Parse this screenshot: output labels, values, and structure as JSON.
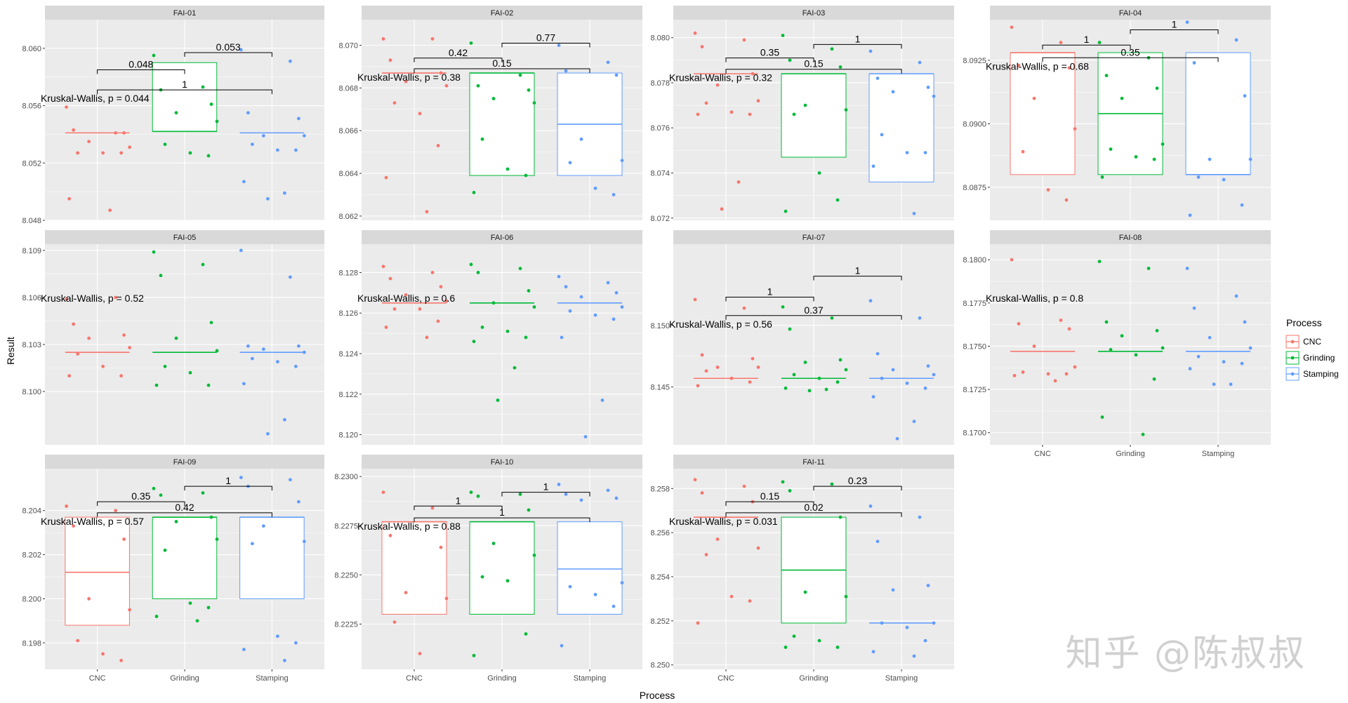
{
  "colors": {
    "CNC": "#F8766D",
    "Grinding": "#00BA38",
    "Stamping": "#619CFF",
    "panel_bg": "#EBEBEB",
    "strip_bg": "#D9D9D9",
    "grid": "#FFFFFF"
  },
  "watermark": "知乎 @陈叔叔",
  "chart_data": {
    "type": "boxplot-facets",
    "xlabel": "Process",
    "ylabel": "Result",
    "categories": [
      "CNC",
      "Grinding",
      "Stamping"
    ],
    "legend": {
      "title": "Process",
      "entries": [
        "CNC",
        "Grinding",
        "Stamping"
      ],
      "position": "right"
    },
    "facets": [
      {
        "title": "FAI-01",
        "ylim": [
          8.048,
          8.062
        ],
        "ticks": [
          "8.048",
          "8.052",
          "8.056",
          "8.060"
        ],
        "kruskal": "Kruskal-Wallis, p = 0.044",
        "boxes": [
          [
            8.0541,
            8.0541,
            8.0541
          ],
          [
            8.0542,
            8.0542,
            8.059
          ],
          [
            8.0541,
            8.0541,
            8.0541
          ]
        ],
        "comparisons": [
          {
            "pair": [
              1,
              2
            ],
            "label": "0.048",
            "y": 8.0585
          },
          {
            "pair": [
              2,
              3
            ],
            "label": "0.053",
            "y": 8.0597
          },
          {
            "pair": [
              1,
              3
            ],
            "label": "1",
            "y": 8.0571
          }
        ],
        "points": [
          [
            8.0559,
            8.0541,
            8.0543,
            8.0541,
            8.0535,
            8.0531,
            8.0527,
            8.0527,
            8.0527,
            8.0495,
            8.0487
          ],
          [
            8.0595,
            8.0573,
            8.0571,
            8.0561,
            8.0555,
            8.0549,
            8.0533,
            8.0527,
            8.0525
          ],
          [
            8.0599,
            8.0591,
            8.0555,
            8.0551,
            8.0539,
            8.0539,
            8.0533,
            8.0529,
            8.0529,
            8.0507,
            8.0499,
            8.0495
          ]
        ]
      },
      {
        "title": "FAI-02",
        "ylim": [
          8.0618,
          8.0712
        ],
        "ticks": [
          "8.062",
          "8.064",
          "8.066",
          "8.068",
          "8.070"
        ],
        "kruskal": "Kruskal-Wallis, p = 0.38",
        "boxes": [
          [
            8.0687,
            8.0687,
            8.0687
          ],
          [
            8.0639,
            8.0687,
            8.0687
          ],
          [
            8.0639,
            8.0663,
            8.0687
          ]
        ],
        "comparisons": [
          {
            "pair": [
              1,
              2
            ],
            "label": "0.42",
            "y": 8.0694
          },
          {
            "pair": [
              2,
              3
            ],
            "label": "0.77",
            "y": 8.0701
          },
          {
            "pair": [
              1,
              3
            ],
            "label": "0.15",
            "y": 8.0689
          }
        ],
        "points": [
          [
            8.0703,
            8.0703,
            8.0693,
            8.0687,
            8.0683,
            8.0681,
            8.0673,
            8.0668,
            8.0653,
            8.0638,
            8.0622
          ],
          [
            8.0701,
            8.0686,
            8.0681,
            8.0679,
            8.0675,
            8.0673,
            8.0656,
            8.0642,
            8.0639,
            8.0631
          ],
          [
            8.07,
            8.0692,
            8.0688,
            8.0686,
            8.0656,
            8.0646,
            8.0645,
            8.0633,
            8.063
          ]
        ]
      },
      {
        "title": "FAI-03",
        "ylim": [
          8.0719,
          8.0808
        ],
        "ticks": [
          "8.072",
          "8.074",
          "8.076",
          "8.078",
          "8.080"
        ],
        "kruskal": "Kruskal-Wallis, p = 0.32",
        "boxes": [
          [
            8.0784,
            8.0784,
            8.0784
          ],
          [
            8.0747,
            8.0784,
            8.0784
          ],
          [
            8.0736,
            8.0784,
            8.0784
          ]
        ],
        "comparisons": [
          {
            "pair": [
              1,
              2
            ],
            "label": "0.35",
            "y": 8.0791
          },
          {
            "pair": [
              2,
              3
            ],
            "label": "1",
            "y": 8.0797
          },
          {
            "pair": [
              1,
              3
            ],
            "label": "0.15",
            "y": 8.0786
          }
        ],
        "points": [
          [
            8.0802,
            8.0799,
            8.0796,
            8.0784,
            8.0779,
            8.0772,
            8.0771,
            8.0767,
            8.0766,
            8.0766,
            8.0736,
            8.0724
          ],
          [
            8.0801,
            8.0795,
            8.079,
            8.0787,
            8.077,
            8.0768,
            8.0766,
            8.074,
            8.0728,
            8.0723
          ],
          [
            8.0794,
            8.0789,
            8.0782,
            8.0778,
            8.0776,
            8.0774,
            8.0757,
            8.0749,
            8.0749,
            8.0743,
            8.0722
          ]
        ]
      },
      {
        "title": "FAI-04",
        "ylim": [
          8.0862,
          8.0941
        ],
        "ticks": [
          "8.0875",
          "8.0900",
          "8.0925"
        ],
        "kruskal": "Kruskal-Wallis, p = 0.68",
        "boxes": [
          [
            8.088,
            8.0928,
            8.0928
          ],
          [
            8.088,
            8.0904,
            8.0928
          ],
          [
            8.088,
            8.088,
            8.0928
          ]
        ],
        "comparisons": [
          {
            "pair": [
              1,
              2
            ],
            "label": "1",
            "y": 8.0931
          },
          {
            "pair": [
              2,
              3
            ],
            "label": "1",
            "y": 8.0937
          },
          {
            "pair": [
              1,
              3
            ],
            "label": "0.35",
            "y": 8.0926
          }
        ],
        "points": [
          [
            8.0938,
            8.0932,
            8.0923,
            8.0922,
            8.091,
            8.0898,
            8.0889,
            8.0874,
            8.087
          ],
          [
            8.0932,
            8.0926,
            8.0919,
            8.0914,
            8.091,
            8.0892,
            8.089,
            8.0887,
            8.0886,
            8.0879
          ],
          [
            8.094,
            8.0933,
            8.0924,
            8.0911,
            8.0886,
            8.0886,
            8.0879,
            8.0878,
            8.0868,
            8.0864
          ]
        ]
      },
      {
        "title": "FAI-05",
        "ylim": [
          8.0966,
          8.1094
        ],
        "ticks": [
          "8.100",
          "8.103",
          "8.106",
          "8.109"
        ],
        "kruskal": "Kruskal-Wallis, p = 0.52",
        "boxes": [
          [
            8.1025,
            8.1025,
            8.1025
          ],
          [
            8.1025,
            8.1025,
            8.1025
          ],
          [
            8.1025,
            8.1025,
            8.1025
          ]
        ],
        "comparisons": [],
        "points": [
          [
            8.1059,
            8.106,
            8.1043,
            8.1036,
            8.1034,
            8.1028,
            8.1024,
            8.1016,
            8.101,
            8.101
          ],
          [
            8.1089,
            8.1081,
            8.1074,
            8.1044,
            8.1034,
            8.1026,
            8.1016,
            8.1012,
            8.1004,
            8.1004
          ],
          [
            8.109,
            8.1073,
            8.1029,
            8.1029,
            8.1027,
            8.1025,
            8.1021,
            8.1019,
            8.1016,
            8.1005,
            8.0982,
            8.0973
          ]
        ]
      },
      {
        "title": "FAI-06",
        "ylim": [
          8.1195,
          8.1294
        ],
        "ticks": [
          "8.120",
          "8.122",
          "8.124",
          "8.126",
          "8.128"
        ],
        "kruskal": "Kruskal-Wallis, p = 0.6",
        "boxes": [
          [
            8.1265,
            8.1265,
            8.1265
          ],
          [
            8.1265,
            8.1265,
            8.1265
          ],
          [
            8.1265,
            8.1265,
            8.1265
          ]
        ],
        "comparisons": [],
        "points": [
          [
            8.1283,
            8.128,
            8.1277,
            8.1273,
            8.1269,
            8.1266,
            8.1262,
            8.1262,
            8.1256,
            8.1253,
            8.1248
          ],
          [
            8.1284,
            8.1282,
            8.128,
            8.1271,
            8.1265,
            8.1263,
            8.1253,
            8.1251,
            8.1248,
            8.1246,
            8.1233,
            8.1217
          ],
          [
            8.1278,
            8.1275,
            8.1273,
            8.127,
            8.1268,
            8.1263,
            8.1261,
            8.1259,
            8.1257,
            8.1248,
            8.1217,
            8.1199
          ]
        ]
      },
      {
        "title": "FAI-07",
        "ylim": [
          8.1403,
          8.1566
        ],
        "ticks": [
          "8.145",
          "8.150"
        ],
        "kruskal": "Kruskal-Wallis, p = 0.56",
        "boxes": [
          [
            8.1457,
            8.1457,
            8.1457
          ],
          [
            8.1457,
            8.1457,
            8.1457
          ],
          [
            8.1457,
            8.1457,
            8.1457
          ]
        ],
        "comparisons": [
          {
            "pair": [
              1,
              2
            ],
            "label": "1",
            "y": 8.1523
          },
          {
            "pair": [
              2,
              3
            ],
            "label": "1",
            "y": 8.154
          },
          {
            "pair": [
              1,
              3
            ],
            "label": "0.37",
            "y": 8.1508
          }
        ],
        "points": [
          [
            8.1521,
            8.1514,
            8.1476,
            8.1473,
            8.1466,
            8.1466,
            8.1463,
            8.1457,
            8.1454,
            8.1451
          ],
          [
            8.1515,
            8.1506,
            8.1497,
            8.1472,
            8.147,
            8.1464,
            8.146,
            8.1457,
            8.1454,
            8.1449,
            8.1448,
            8.1447
          ],
          [
            8.152,
            8.1506,
            8.1477,
            8.1467,
            8.1464,
            8.146,
            8.1457,
            8.1453,
            8.1449,
            8.1442,
            8.1422,
            8.1408
          ]
        ]
      },
      {
        "title": "FAI-08",
        "ylim": [
          8.1693,
          8.1809
        ],
        "ticks": [
          "8.1700",
          "8.1725",
          "8.1750",
          "8.1775",
          "8.1800"
        ],
        "kruskal": "Kruskal-Wallis, p = 0.8",
        "boxes": [
          [
            8.1747,
            8.1747,
            8.1747
          ],
          [
            8.1747,
            8.1747,
            8.1747
          ],
          [
            8.1747,
            8.1747,
            8.1747
          ]
        ],
        "comparisons": [],
        "points": [
          [
            8.18,
            8.1765,
            8.1763,
            8.176,
            8.175,
            8.1738,
            8.1735,
            8.1734,
            8.1734,
            8.1733,
            8.173
          ],
          [
            8.1799,
            8.1795,
            8.1764,
            8.1759,
            8.1756,
            8.1749,
            8.1748,
            8.1745,
            8.1731,
            8.1709,
            8.1699
          ],
          [
            8.1795,
            8.1779,
            8.1772,
            8.1764,
            8.1755,
            8.1749,
            8.1744,
            8.1741,
            8.174,
            8.1737,
            8.1728,
            8.1728
          ]
        ]
      },
      {
        "title": "FAI-09",
        "ylim": [
          8.1968,
          8.2059
        ],
        "ticks": [
          "8.198",
          "8.200",
          "8.202",
          "8.204"
        ],
        "kruskal": "Kruskal-Wallis, p = 0.57",
        "boxes": [
          [
            8.1988,
            8.2012,
            8.2037
          ],
          [
            8.2,
            8.2037,
            8.2037
          ],
          [
            8.2,
            8.2037,
            8.2037
          ]
        ],
        "comparisons": [
          {
            "pair": [
              1,
              2
            ],
            "label": "0.35",
            "y": 8.2044
          },
          {
            "pair": [
              2,
              3
            ],
            "label": "1",
            "y": 8.2051
          },
          {
            "pair": [
              1,
              3
            ],
            "label": "0.42",
            "y": 8.2039
          }
        ],
        "points": [
          [
            8.2042,
            8.204,
            8.2033,
            8.2027,
            8.2,
            8.1995,
            8.1981,
            8.1975,
            8.1972
          ],
          [
            8.205,
            8.2048,
            8.2047,
            8.2037,
            8.2035,
            8.2027,
            8.2022,
            8.1998,
            8.1996,
            8.1992,
            8.199
          ],
          [
            8.2055,
            8.2054,
            8.2051,
            8.2044,
            8.2033,
            8.2026,
            8.2025,
            8.1983,
            8.198,
            8.1977,
            8.1972
          ]
        ]
      },
      {
        "title": "FAI-10",
        "ylim": [
          8.2202,
          8.2304
        ],
        "ticks": [
          "8.2225",
          "8.2250",
          "8.2275",
          "8.2300"
        ],
        "kruskal": "Kruskal-Wallis, p = 0.88",
        "boxes": [
          [
            8.223,
            8.2277,
            8.2277
          ],
          [
            8.223,
            8.2277,
            8.2277
          ],
          [
            8.223,
            8.2253,
            8.2277
          ]
        ],
        "comparisons": [
          {
            "pair": [
              1,
              2
            ],
            "label": "1",
            "y": 8.2285
          },
          {
            "pair": [
              2,
              3
            ],
            "label": "1",
            "y": 8.2292
          },
          {
            "pair": [
              1,
              3
            ],
            "label": "1",
            "y": 8.2279
          }
        ],
        "points": [
          [
            8.2292,
            8.2284,
            8.227,
            8.2264,
            8.2241,
            8.2238,
            8.2226,
            8.221
          ],
          [
            8.2292,
            8.2291,
            8.229,
            8.2283,
            8.2266,
            8.226,
            8.2249,
            8.2247,
            8.222,
            8.2209
          ],
          [
            8.2296,
            8.2293,
            8.2291,
            8.2289,
            8.2288,
            8.2246,
            8.2244,
            8.224,
            8.2234,
            8.2214
          ]
        ]
      },
      {
        "title": "FAI-11",
        "ylim": [
          8.2498,
          8.2589
        ],
        "ticks": [
          "8.250",
          "8.252",
          "8.254",
          "8.256",
          "8.258"
        ],
        "kruskal": "Kruskal-Wallis, p = 0.031",
        "boxes": [
          [
            8.2567,
            8.2567,
            8.2567
          ],
          [
            8.2519,
            8.2543,
            8.2567
          ],
          [
            8.2519,
            8.2519,
            8.2519
          ]
        ],
        "comparisons": [
          {
            "pair": [
              1,
              2
            ],
            "label": "0.15",
            "y": 8.2574
          },
          {
            "pair": [
              2,
              3
            ],
            "label": "0.23",
            "y": 8.2581
          },
          {
            "pair": [
              1,
              3
            ],
            "label": "0.02",
            "y": 8.2569
          }
        ],
        "points": [
          [
            8.2584,
            8.2581,
            8.2578,
            8.2574,
            8.2557,
            8.2553,
            8.255,
            8.2531,
            8.2529,
            8.2519
          ],
          [
            8.2583,
            8.2582,
            8.2579,
            8.2567,
            8.2533,
            8.2531,
            8.2513,
            8.2511,
            8.2508,
            8.2508
          ],
          [
            8.2572,
            8.2567,
            8.2556,
            8.2536,
            8.2534,
            8.2519,
            8.2519,
            8.2517,
            8.2511,
            8.2506,
            8.2504
          ]
        ]
      }
    ]
  }
}
